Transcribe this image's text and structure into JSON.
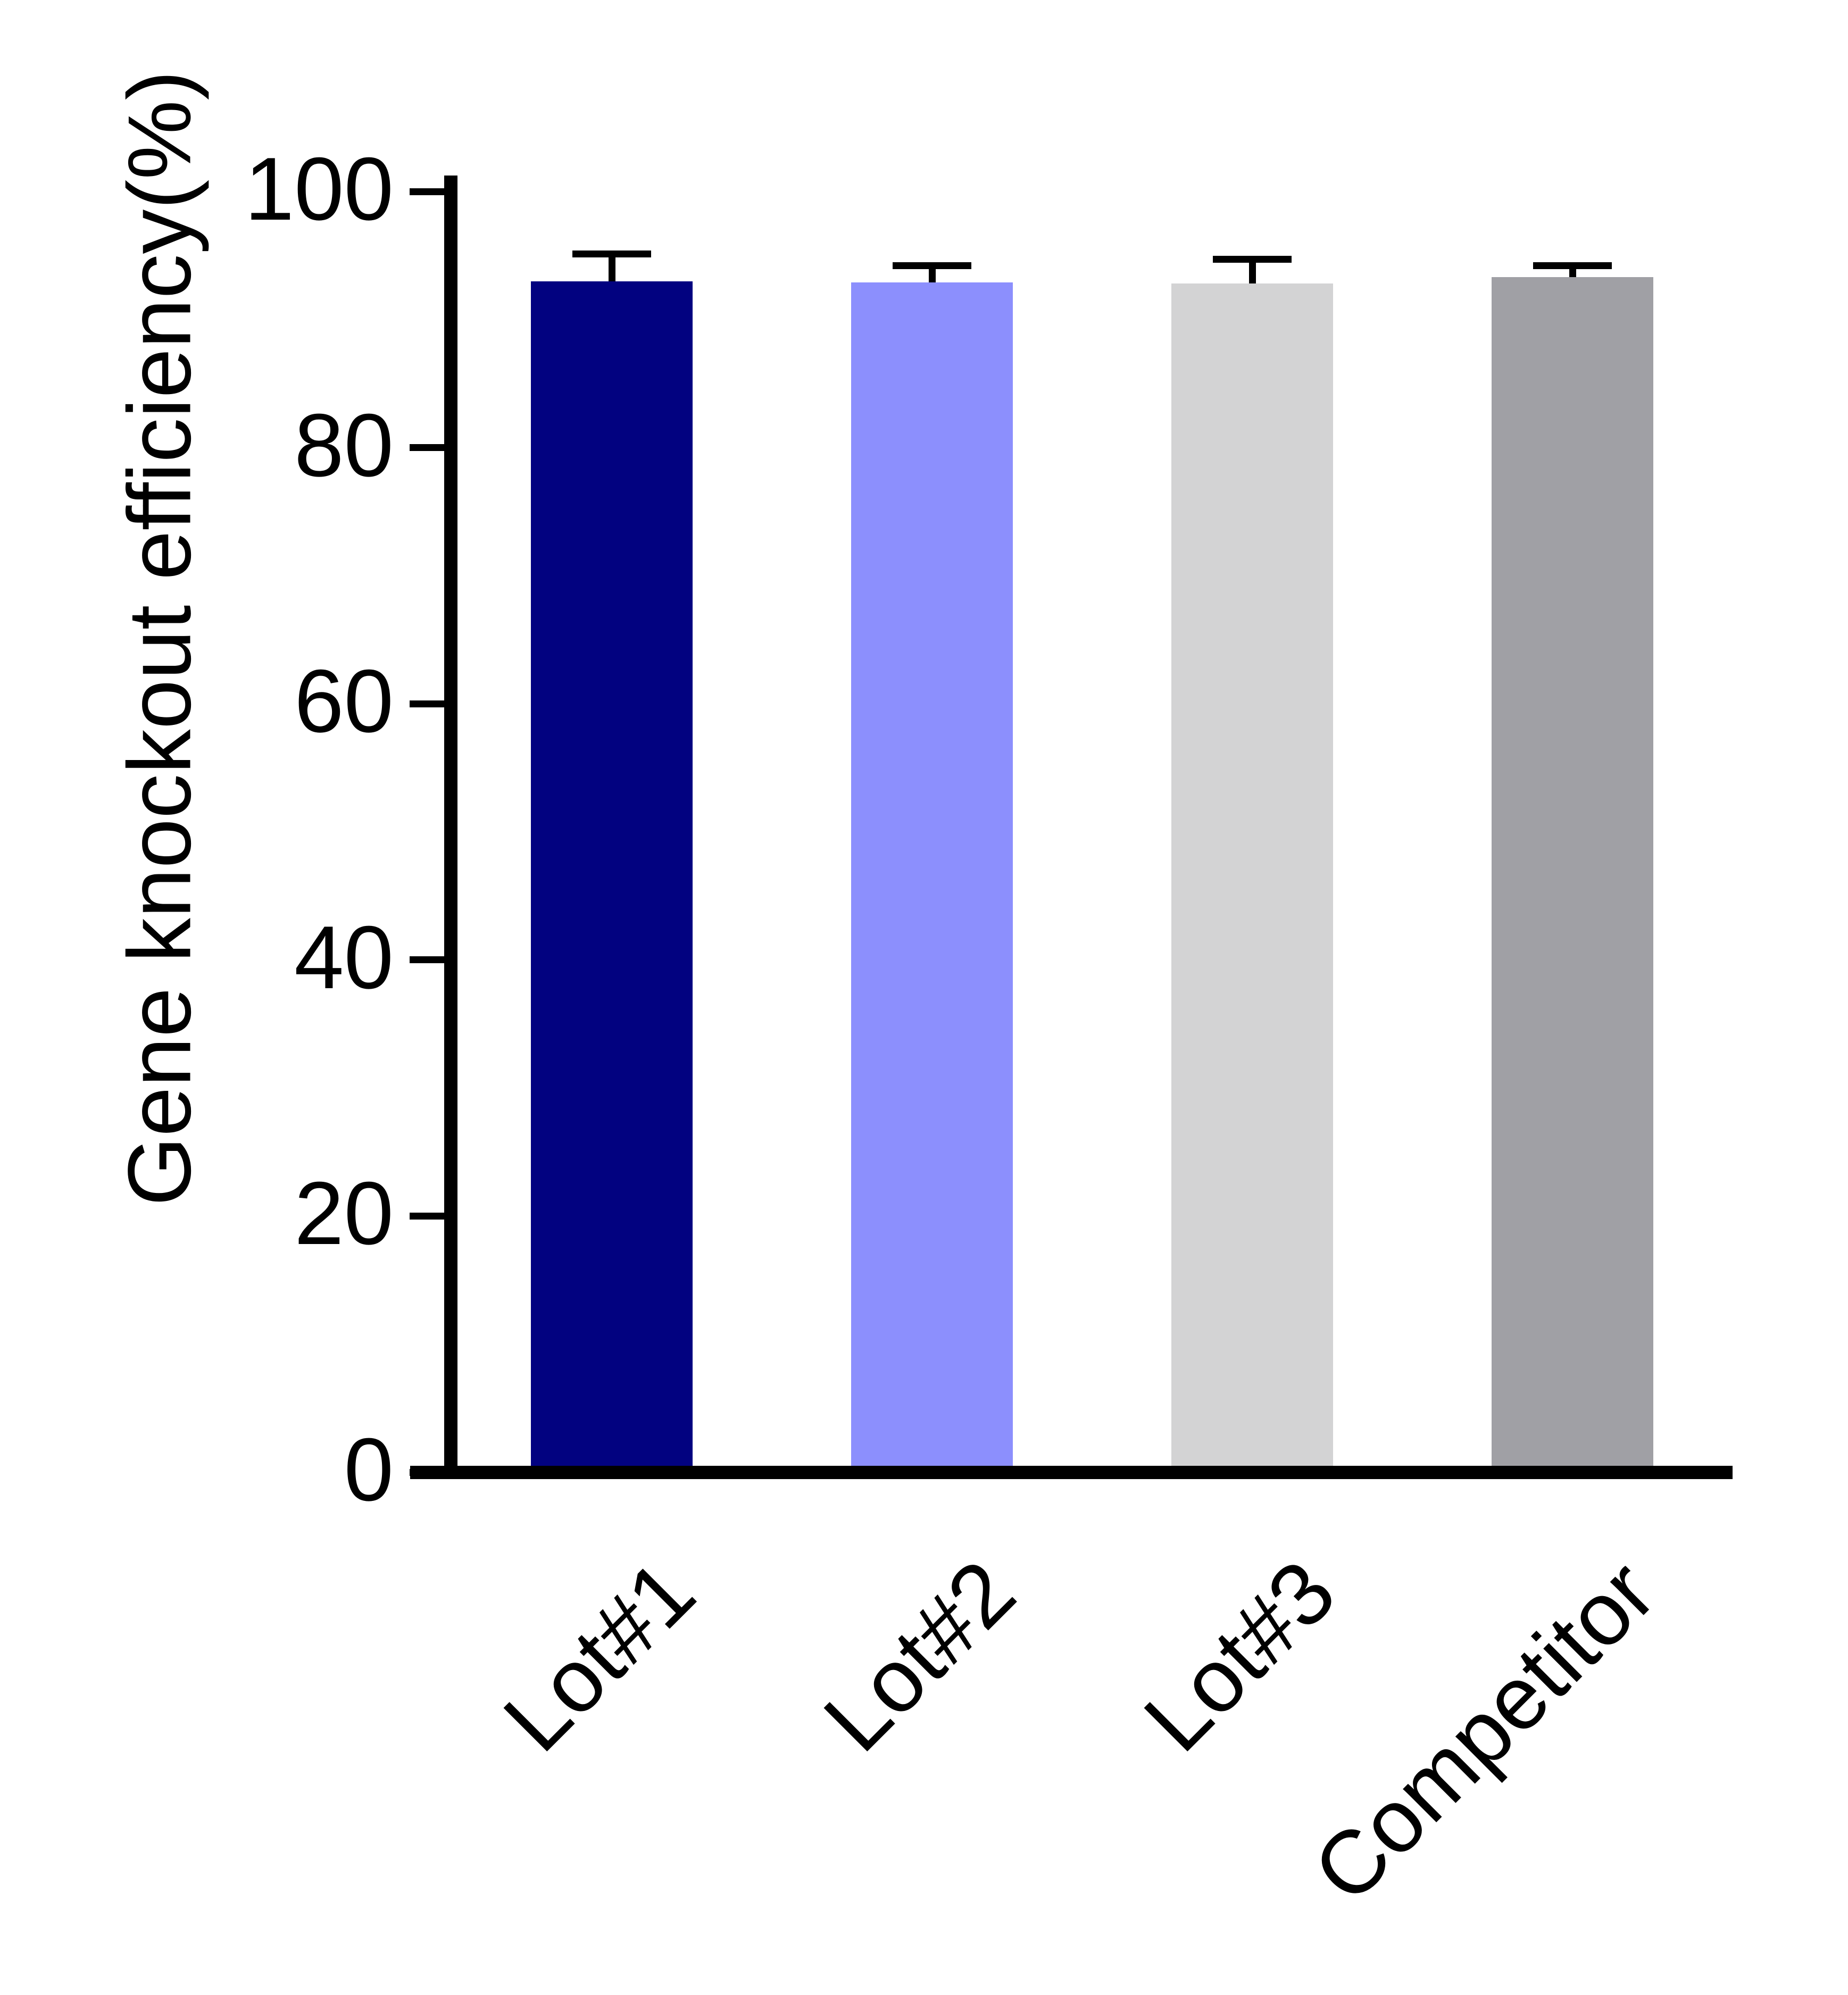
{
  "chart_data": {
    "type": "bar",
    "title": "",
    "ylabel": "Gene knockout efficiency(%)",
    "xlabel": "",
    "categories": [
      "Lot#1",
      "Lot#2",
      "Lot#3",
      "Competitor"
    ],
    "values": [
      93.0,
      92.9,
      92.8,
      93.3
    ],
    "errors_plus": [
      2.1,
      1.3,
      1.9,
      0.9
    ],
    "error_bar_style": "upper-cap-only",
    "bar_colors": [
      "#020280",
      "#8c8ffd",
      "#d3d3d4",
      "#a0a0a5"
    ],
    "axis_color": "#000000",
    "ylim": [
      0,
      100
    ],
    "yticks": [
      0,
      20,
      40,
      60,
      80,
      100
    ],
    "grid": false,
    "legend": "none",
    "x_tick_label_rotation_deg": 45
  }
}
